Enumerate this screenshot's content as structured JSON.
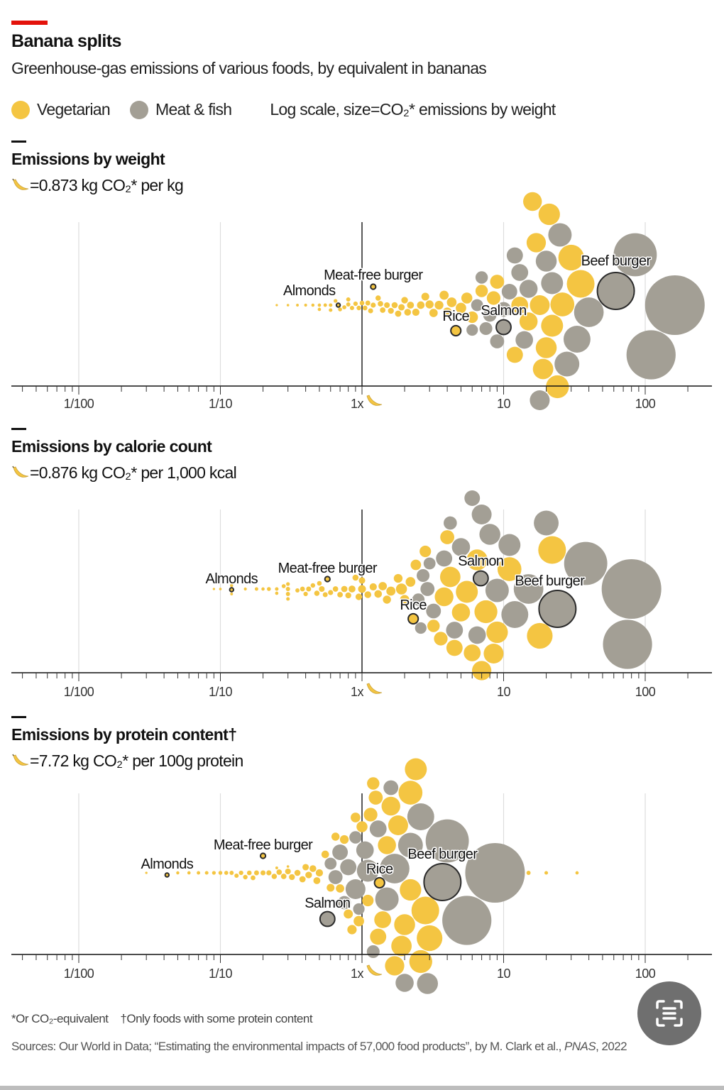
{
  "header": {
    "title": "Banana splits",
    "subtitle": "Greenhouse-gas emissions of various foods, by equivalent in bananas"
  },
  "legend": {
    "vegetarian": "Vegetarian",
    "meat": "Meat & fish",
    "note": "Log scale, size=CO₂* emissions by weight"
  },
  "colors": {
    "vegetarian": "#f4c542",
    "meat": "#a39f95",
    "accent": "#e3120b",
    "highlight_stroke": "#2b2b2b"
  },
  "footer": {
    "note1": "*Or CO₂-equivalent",
    "note2": "†Only foods with some protein content",
    "source_pre": "Sources: Our World in Data; “Estimating the environmental impacts of 57,000 food products”, by M. Clark et al., ",
    "source_journal": "PNAS",
    "source_year": ", 2022"
  },
  "chart_data": {
    "type": "scatter",
    "subtype": "beeswarm",
    "title": "Banana splits",
    "x_scale": "log",
    "xlim": [
      0.0034,
      290
    ],
    "x_ticks": [
      {
        "value": 0.01,
        "label": "1/100"
      },
      {
        "value": 0.1,
        "label": "1/10"
      },
      {
        "value": 1,
        "label": "1x"
      },
      {
        "value": 10,
        "label": "10"
      },
      {
        "value": 100,
        "label": "100"
      }
    ],
    "size_encoding": "CO₂ emissions by weight (bananas)",
    "panels": [
      {
        "key": "w",
        "title": "Emissions by weight",
        "subtitle": "=0.873 kg CO₂* per kg"
      },
      {
        "key": "c",
        "title": "Emissions by calorie count",
        "subtitle": "=0.876 kg CO₂* per 1,000 kcal"
      },
      {
        "key": "p",
        "title": "Emissions by protein content†",
        "subtitle": "=7.72 kg CO₂* per 100g protein"
      }
    ],
    "highlights": [
      {
        "name": "Almonds",
        "type": "veg",
        "w": 0.68,
        "c": 0.12,
        "p": 0.042
      },
      {
        "name": "Meat-free burger",
        "type": "veg",
        "w": 1.2,
        "c": 0.57,
        "p": 0.2
      },
      {
        "name": "Rice",
        "type": "veg",
        "w": 4.6,
        "c": 2.3,
        "p": 1.33
      },
      {
        "name": "Salmon",
        "type": "meat",
        "w": 10,
        "c": 6.9,
        "p": 0.57
      },
      {
        "name": "Beef burger",
        "type": "meat",
        "w": 62,
        "c": 24,
        "p": 3.7
      }
    ],
    "foods_columns": [
      "type",
      "w",
      "c",
      "p"
    ],
    "foods": [
      [
        "veg",
        0.25,
        0.09,
        0.03
      ],
      [
        "veg",
        0.4,
        0.15,
        null
      ],
      [
        "veg",
        0.45,
        0.12,
        0.05
      ],
      [
        "veg",
        0.5,
        0.2,
        0.06
      ],
      [
        "veg",
        0.55,
        0.18,
        0.07
      ],
      [
        "veg",
        0.6,
        0.25,
        0.08
      ],
      [
        "veg",
        0.65,
        0.3,
        0.09
      ],
      [
        "veg",
        0.7,
        0.22,
        0.1
      ],
      [
        "veg",
        0.75,
        0.28,
        0.11
      ],
      [
        "veg",
        0.8,
        0.35,
        0.12
      ],
      [
        "veg",
        0.85,
        0.3,
        0.13
      ],
      [
        "veg",
        0.9,
        0.4,
        0.14
      ],
      [
        "veg",
        0.95,
        0.45,
        0.15
      ],
      [
        "veg",
        1.0,
        0.5,
        0.16
      ],
      [
        "veg",
        1.05,
        0.38,
        0.17
      ],
      [
        "veg",
        1.1,
        0.55,
        0.18
      ],
      [
        "veg",
        1.15,
        0.42,
        0.2
      ],
      [
        "veg",
        1.2,
        0.6,
        0.22
      ],
      [
        "veg",
        1.3,
        0.48,
        0.24
      ],
      [
        "veg",
        1.35,
        0.65,
        0.26
      ],
      [
        "veg",
        1.4,
        0.7,
        0.28
      ],
      [
        "veg",
        1.5,
        0.52,
        0.3
      ],
      [
        "veg",
        1.6,
        0.8,
        0.32
      ],
      [
        "veg",
        1.7,
        0.9,
        0.35
      ],
      [
        "veg",
        1.8,
        0.75,
        0.38
      ],
      [
        "veg",
        1.9,
        1.0,
        0.4
      ],
      [
        "veg",
        2.0,
        0.95,
        0.42
      ],
      [
        "veg",
        2.1,
        1.1,
        0.45
      ],
      [
        "veg",
        2.2,
        0.85,
        0.48
      ],
      [
        "veg",
        2.4,
        1.2,
        0.5
      ],
      [
        "veg",
        2.6,
        1.3,
        0.55
      ],
      [
        "veg",
        2.8,
        1.0,
        0.6
      ],
      [
        "veg",
        3.0,
        1.5,
        0.65
      ],
      [
        "veg",
        3.2,
        1.4,
        0.7
      ],
      [
        "veg",
        3.5,
        1.8,
        0.75
      ],
      [
        "veg",
        3.8,
        1.6,
        0.8
      ],
      [
        "veg",
        4.0,
        2.0,
        0.85
      ],
      [
        "veg",
        4.3,
        2.2,
        0.9
      ],
      [
        "veg",
        5.0,
        2.4,
        0.95
      ],
      [
        "veg",
        5.5,
        1.9,
        1.0
      ],
      [
        "veg",
        6.0,
        2.8,
        1.1
      ],
      [
        "veg",
        7.0,
        3.2,
        1.2
      ],
      [
        "veg",
        8.5,
        3.6,
        1.15
      ],
      [
        "veg",
        9.0,
        4.0,
        1.25
      ],
      [
        "veg",
        12,
        4.5,
        1.3
      ],
      [
        "veg",
        13,
        6,
        1.4
      ],
      [
        "veg",
        15,
        5,
        1.5
      ],
      [
        "veg",
        16,
        3.8,
        1.6
      ],
      [
        "veg",
        17,
        7,
        1.7
      ],
      [
        "veg",
        18,
        8.5,
        1.8
      ],
      [
        "veg",
        19,
        4.2,
        1.9
      ],
      [
        "veg",
        20,
        6.5,
        2.0
      ],
      [
        "veg",
        21,
        9,
        2.2
      ],
      [
        "veg",
        22,
        5.5,
        2.4
      ],
      [
        "veg",
        24,
        7.5,
        2.6
      ],
      [
        "veg",
        26,
        11,
        2.2
      ],
      [
        "veg",
        30,
        18,
        3.0
      ],
      [
        "veg",
        35,
        22,
        2.8
      ],
      [
        "veg",
        0.8,
        0.3,
        15
      ],
      [
        "veg",
        0.6,
        0.3,
        20
      ],
      [
        "veg",
        0.5,
        0.25,
        33
      ],
      [
        "veg",
        0.3,
        0.1,
        0.3
      ],
      [
        "veg",
        0.35,
        0.12,
        0.25
      ],
      [
        "meat",
        162,
        80,
        8.7
      ],
      [
        "meat",
        110,
        75,
        5.5
      ],
      [
        "meat",
        85,
        38,
        4.0
      ],
      [
        "meat",
        40,
        15,
        1.7
      ],
      [
        "meat",
        33,
        12,
        2.6
      ],
      [
        "meat",
        28,
        20,
        2.2
      ],
      [
        "meat",
        25,
        9,
        1.5
      ],
      [
        "meat",
        22,
        11,
        1.1
      ],
      [
        "meat",
        18,
        7,
        0.9
      ],
      [
        "meat",
        15,
        5,
        2.0
      ],
      [
        "meat",
        13,
        4.5,
        1.3
      ],
      [
        "meat",
        12,
        3.8,
        0.8
      ],
      [
        "meat",
        11,
        6,
        0.7
      ],
      [
        "meat",
        10,
        3.2,
        1.6
      ],
      [
        "meat",
        9,
        2.9,
        0.65
      ],
      [
        "meat",
        8,
        4.2,
        0.75
      ],
      [
        "meat",
        7.5,
        2.7,
        1.2
      ],
      [
        "meat",
        7,
        2.5,
        0.9
      ],
      [
        "meat",
        6.5,
        3.0,
        0.6
      ],
      [
        "meat",
        6,
        2.6,
        0.95
      ],
      [
        "meat",
        14,
        6.5,
        1.05
      ],
      [
        "meat",
        20,
        8,
        2.9
      ]
    ]
  }
}
